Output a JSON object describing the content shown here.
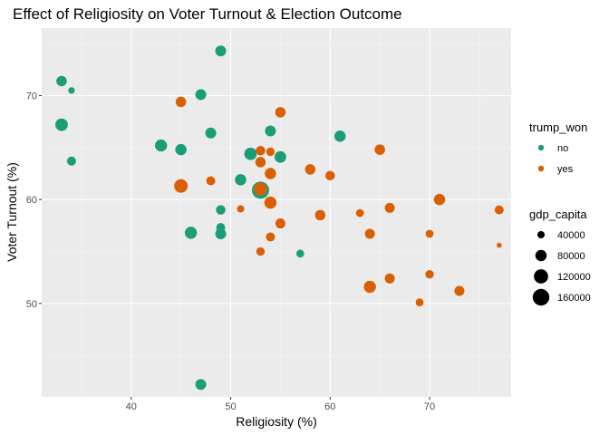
{
  "chart_data": {
    "type": "scatter",
    "title": "Effect of Religiosity on Voter Turnout & Election Outcome",
    "xlabel": "Religiosity (%)",
    "ylabel": "Voter Turnout (%)",
    "xlim": [
      31,
      78.2
    ],
    "ylim": [
      41,
      76.5
    ],
    "x_ticks": [
      40,
      50,
      60,
      70
    ],
    "y_ticks": [
      50,
      60,
      70
    ],
    "grid": true,
    "legend_color": {
      "title": "trump_won",
      "entries": [
        {
          "label": "no",
          "color": "#1b9e77"
        },
        {
          "label": "yes",
          "color": "#d95f02"
        }
      ]
    },
    "legend_size": {
      "title": "gdp_capita",
      "entries": [
        {
          "label": "40000",
          "value": 40000
        },
        {
          "label": "80000",
          "value": 80000
        },
        {
          "label": "120000",
          "value": 120000
        },
        {
          "label": "160000",
          "value": 160000
        }
      ]
    },
    "size_range": [
      20000,
      170000
    ],
    "series": [
      {
        "name": "no",
        "color": "#1b9e77",
        "points": [
          {
            "x": 33,
            "y": 71.4,
            "gdp": 70000
          },
          {
            "x": 34,
            "y": 70.5,
            "gdp": 35000
          },
          {
            "x": 33,
            "y": 67.2,
            "gdp": 95000
          },
          {
            "x": 34,
            "y": 63.7,
            "gdp": 55000
          },
          {
            "x": 43,
            "y": 65.2,
            "gdp": 90000
          },
          {
            "x": 45,
            "y": 64.8,
            "gdp": 80000
          },
          {
            "x": 47,
            "y": 70.1,
            "gdp": 75000
          },
          {
            "x": 48,
            "y": 66.4,
            "gdp": 75000
          },
          {
            "x": 49,
            "y": 74.3,
            "gdp": 75000
          },
          {
            "x": 46,
            "y": 56.8,
            "gdp": 90000
          },
          {
            "x": 49,
            "y": 59.0,
            "gdp": 60000
          },
          {
            "x": 49,
            "y": 57.3,
            "gdp": 55000
          },
          {
            "x": 49,
            "y": 56.7,
            "gdp": 75000
          },
          {
            "x": 51,
            "y": 61.9,
            "gdp": 80000
          },
          {
            "x": 52,
            "y": 64.4,
            "gdp": 95000
          },
          {
            "x": 53,
            "y": 60.9,
            "gdp": 170000
          },
          {
            "x": 54,
            "y": 66.6,
            "gdp": 75000
          },
          {
            "x": 55,
            "y": 64.1,
            "gdp": 85000
          },
          {
            "x": 57,
            "y": 54.8,
            "gdp": 45000
          },
          {
            "x": 61,
            "y": 66.1,
            "gdp": 80000
          },
          {
            "x": 47,
            "y": 42.2,
            "gdp": 75000
          }
        ]
      },
      {
        "name": "yes",
        "color": "#d95f02",
        "points": [
          {
            "x": 45,
            "y": 69.4,
            "gdp": 70000
          },
          {
            "x": 45,
            "y": 61.3,
            "gdp": 110000
          },
          {
            "x": 48,
            "y": 61.8,
            "gdp": 55000
          },
          {
            "x": 51,
            "y": 59.1,
            "gdp": 40000
          },
          {
            "x": 53,
            "y": 64.7,
            "gdp": 60000
          },
          {
            "x": 54,
            "y": 64.6,
            "gdp": 50000
          },
          {
            "x": 53,
            "y": 63.6,
            "gdp": 70000
          },
          {
            "x": 54,
            "y": 62.5,
            "gdp": 80000
          },
          {
            "x": 53,
            "y": 61.0,
            "gdp": 100000
          },
          {
            "x": 54,
            "y": 59.7,
            "gdp": 90000
          },
          {
            "x": 55,
            "y": 68.4,
            "gdp": 70000
          },
          {
            "x": 55,
            "y": 57.7,
            "gdp": 65000
          },
          {
            "x": 54,
            "y": 56.4,
            "gdp": 55000
          },
          {
            "x": 53,
            "y": 55.0,
            "gdp": 50000
          },
          {
            "x": 58,
            "y": 62.9,
            "gdp": 70000
          },
          {
            "x": 60,
            "y": 62.3,
            "gdp": 60000
          },
          {
            "x": 59,
            "y": 58.5,
            "gdp": 70000
          },
          {
            "x": 63,
            "y": 58.7,
            "gdp": 45000
          },
          {
            "x": 64,
            "y": 56.7,
            "gdp": 65000
          },
          {
            "x": 65,
            "y": 64.8,
            "gdp": 70000
          },
          {
            "x": 66,
            "y": 59.2,
            "gdp": 65000
          },
          {
            "x": 66,
            "y": 52.4,
            "gdp": 65000
          },
          {
            "x": 64,
            "y": 51.6,
            "gdp": 90000
          },
          {
            "x": 70,
            "y": 56.7,
            "gdp": 45000
          },
          {
            "x": 70,
            "y": 52.8,
            "gdp": 50000
          },
          {
            "x": 69,
            "y": 50.1,
            "gdp": 45000
          },
          {
            "x": 71,
            "y": 60.0,
            "gdp": 80000
          },
          {
            "x": 73,
            "y": 51.2,
            "gdp": 65000
          },
          {
            "x": 77,
            "y": 59.0,
            "gdp": 55000
          },
          {
            "x": 77,
            "y": 55.6,
            "gdp": 25000
          }
        ]
      }
    ]
  }
}
